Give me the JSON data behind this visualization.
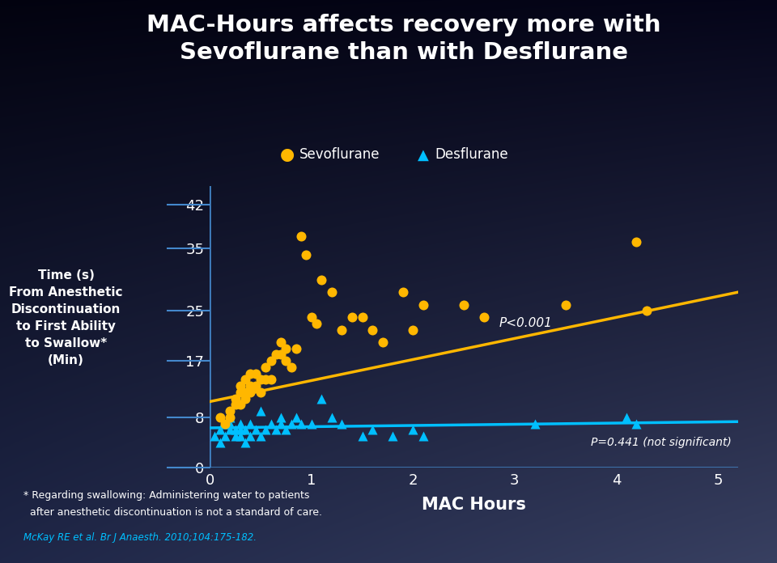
{
  "title": "MAC-Hours affects recovery more with\nSevoflurane than with Desflurane",
  "xlabel": "MAC Hours",
  "ylabel_lines": [
    "Time (s)",
    "From Anesthetic",
    "Discontinuation",
    "to First Ability",
    "to Swallow*",
    "(Min)"
  ],
  "yticks": [
    0,
    8,
    17,
    25,
    35,
    42
  ],
  "xticks": [
    0,
    1,
    2,
    3,
    4,
    5
  ],
  "xlim": [
    0,
    5.2
  ],
  "ylim": [
    0,
    45
  ],
  "text_color": "#ffffff",
  "sevo_color": "#FFB700",
  "des_color": "#00BFFF",
  "axis_line_color": "#4488CC",
  "footnote1": "* Regarding swallowing: Administering water to patients",
  "footnote2": "  after anesthetic discontinuation is not a standard of care.",
  "footnote3": "McKay RE et al. Br J Anaesth. 2010;104:175-182.",
  "p_sevo": "P<0.001",
  "p_des": "P=0.441 (not significant)",
  "legend_sevo": "Sevoflurane",
  "legend_des": "Desflurane",
  "sevo_x": [
    0.1,
    0.15,
    0.2,
    0.2,
    0.25,
    0.25,
    0.3,
    0.3,
    0.3,
    0.35,
    0.35,
    0.35,
    0.4,
    0.4,
    0.4,
    0.45,
    0.45,
    0.5,
    0.5,
    0.55,
    0.55,
    0.6,
    0.6,
    0.65,
    0.7,
    0.7,
    0.75,
    0.75,
    0.8,
    0.85,
    0.9,
    0.95,
    1.0,
    1.05,
    1.1,
    1.2,
    1.3,
    1.4,
    1.5,
    1.6,
    1.7,
    1.9,
    2.0,
    2.1,
    2.5,
    2.7,
    3.5,
    4.2,
    4.3
  ],
  "sevo_y": [
    8,
    7,
    8,
    9,
    10,
    11,
    10,
    12,
    13,
    11,
    12,
    14,
    12,
    13,
    15,
    13,
    15,
    12,
    14,
    14,
    16,
    14,
    17,
    18,
    18,
    20,
    17,
    19,
    16,
    19,
    37,
    34,
    24,
    23,
    30,
    28,
    22,
    24,
    24,
    22,
    20,
    28,
    22,
    26,
    26,
    24,
    26,
    36,
    25
  ],
  "des_x": [
    0.05,
    0.1,
    0.1,
    0.15,
    0.15,
    0.2,
    0.2,
    0.2,
    0.25,
    0.25,
    0.3,
    0.3,
    0.3,
    0.35,
    0.35,
    0.4,
    0.4,
    0.45,
    0.5,
    0.5,
    0.55,
    0.6,
    0.65,
    0.7,
    0.7,
    0.75,
    0.8,
    0.85,
    0.9,
    1.0,
    1.1,
    1.2,
    1.3,
    1.5,
    1.6,
    1.8,
    2.0,
    2.1,
    3.2,
    4.1,
    4.2
  ],
  "des_y": [
    5,
    4,
    6,
    5,
    7,
    6,
    7,
    8,
    5,
    6,
    5,
    6,
    7,
    4,
    6,
    5,
    7,
    6,
    5,
    9,
    6,
    7,
    6,
    7,
    8,
    6,
    7,
    8,
    7,
    7,
    11,
    8,
    7,
    5,
    6,
    5,
    6,
    5,
    7,
    8,
    7
  ],
  "sevo_trend_x": [
    0.0,
    5.2
  ],
  "sevo_trend_y": [
    10.5,
    28.0
  ],
  "des_trend_x": [
    0.0,
    5.2
  ],
  "des_trend_y": [
    6.3,
    7.3
  ],
  "bg_colors": [
    "#000008",
    "#060620",
    "#101840",
    "#1a2252",
    "#232850"
  ],
  "bg_stops": [
    0.0,
    0.25,
    0.55,
    0.8,
    1.0
  ]
}
